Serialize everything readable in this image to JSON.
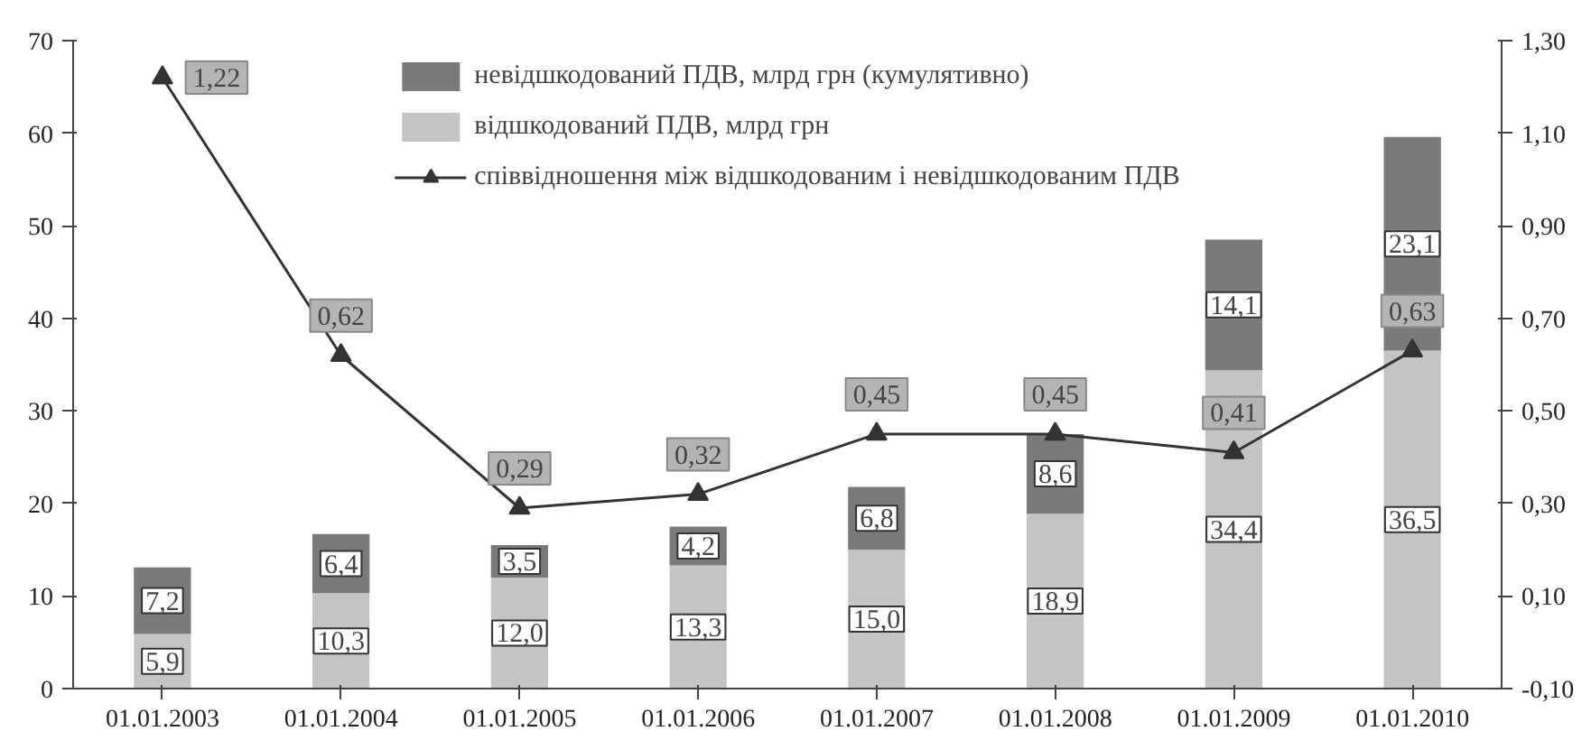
{
  "chart_data": {
    "type": "bar",
    "stacked": true,
    "categories": [
      "01.01.2003",
      "01.01.2004",
      "01.01.2005",
      "01.01.2006",
      "01.01.2007",
      "01.01.2008",
      "01.01.2009",
      "01.01.2010"
    ],
    "series": [
      {
        "name": "відшкодований ПДВ, млрд грн",
        "color": "#c4c4c4",
        "values": [
          5.9,
          10.3,
          12.0,
          13.3,
          15.0,
          18.9,
          34.4,
          36.5
        ],
        "value_labels": [
          "5,9",
          "10,3",
          "12,0",
          "13,3",
          "15,0",
          "18,9",
          "34,4",
          "36,5"
        ]
      },
      {
        "name": "невідшкодований ПДВ, млрд грн (кумулятивно)",
        "color": "#7a7a7a",
        "values": [
          7.2,
          6.4,
          3.5,
          4.2,
          6.8,
          8.6,
          14.1,
          23.1
        ],
        "value_labels": [
          "7,2",
          "6,4",
          "3,5",
          "4,2",
          "6,8",
          "8,6",
          "14,1",
          "23,1"
        ]
      },
      {
        "name": "співвідношення між відшкодованим і невідшкодованим ПДВ",
        "type": "line",
        "axis": "y2",
        "color": "#333333",
        "values": [
          1.22,
          0.62,
          0.29,
          0.32,
          0.45,
          0.45,
          0.41,
          0.63
        ],
        "value_labels": [
          "1,22",
          "0,62",
          "0,29",
          "0,32",
          "0,45",
          "0,45",
          "0,41",
          "0,63"
        ]
      }
    ],
    "ylim": [
      0,
      70
    ],
    "yticks": [
      0,
      10,
      20,
      30,
      40,
      50,
      60,
      70
    ],
    "y2lim": [
      -0.1,
      1.3
    ],
    "y2ticks": [
      {
        "value": -0.1,
        "label": "-0,10"
      },
      {
        "value": 0.1,
        "label": "0,10"
      },
      {
        "value": 0.3,
        "label": "0,30"
      },
      {
        "value": 0.5,
        "label": "0,50"
      },
      {
        "value": 0.7,
        "label": "0,70"
      },
      {
        "value": 0.9,
        "label": "0,90"
      },
      {
        "value": 1.1,
        "label": "1,10"
      },
      {
        "value": 1.3,
        "label": "1,30"
      }
    ],
    "marker": "triangle",
    "grid": false,
    "legend": "top"
  }
}
